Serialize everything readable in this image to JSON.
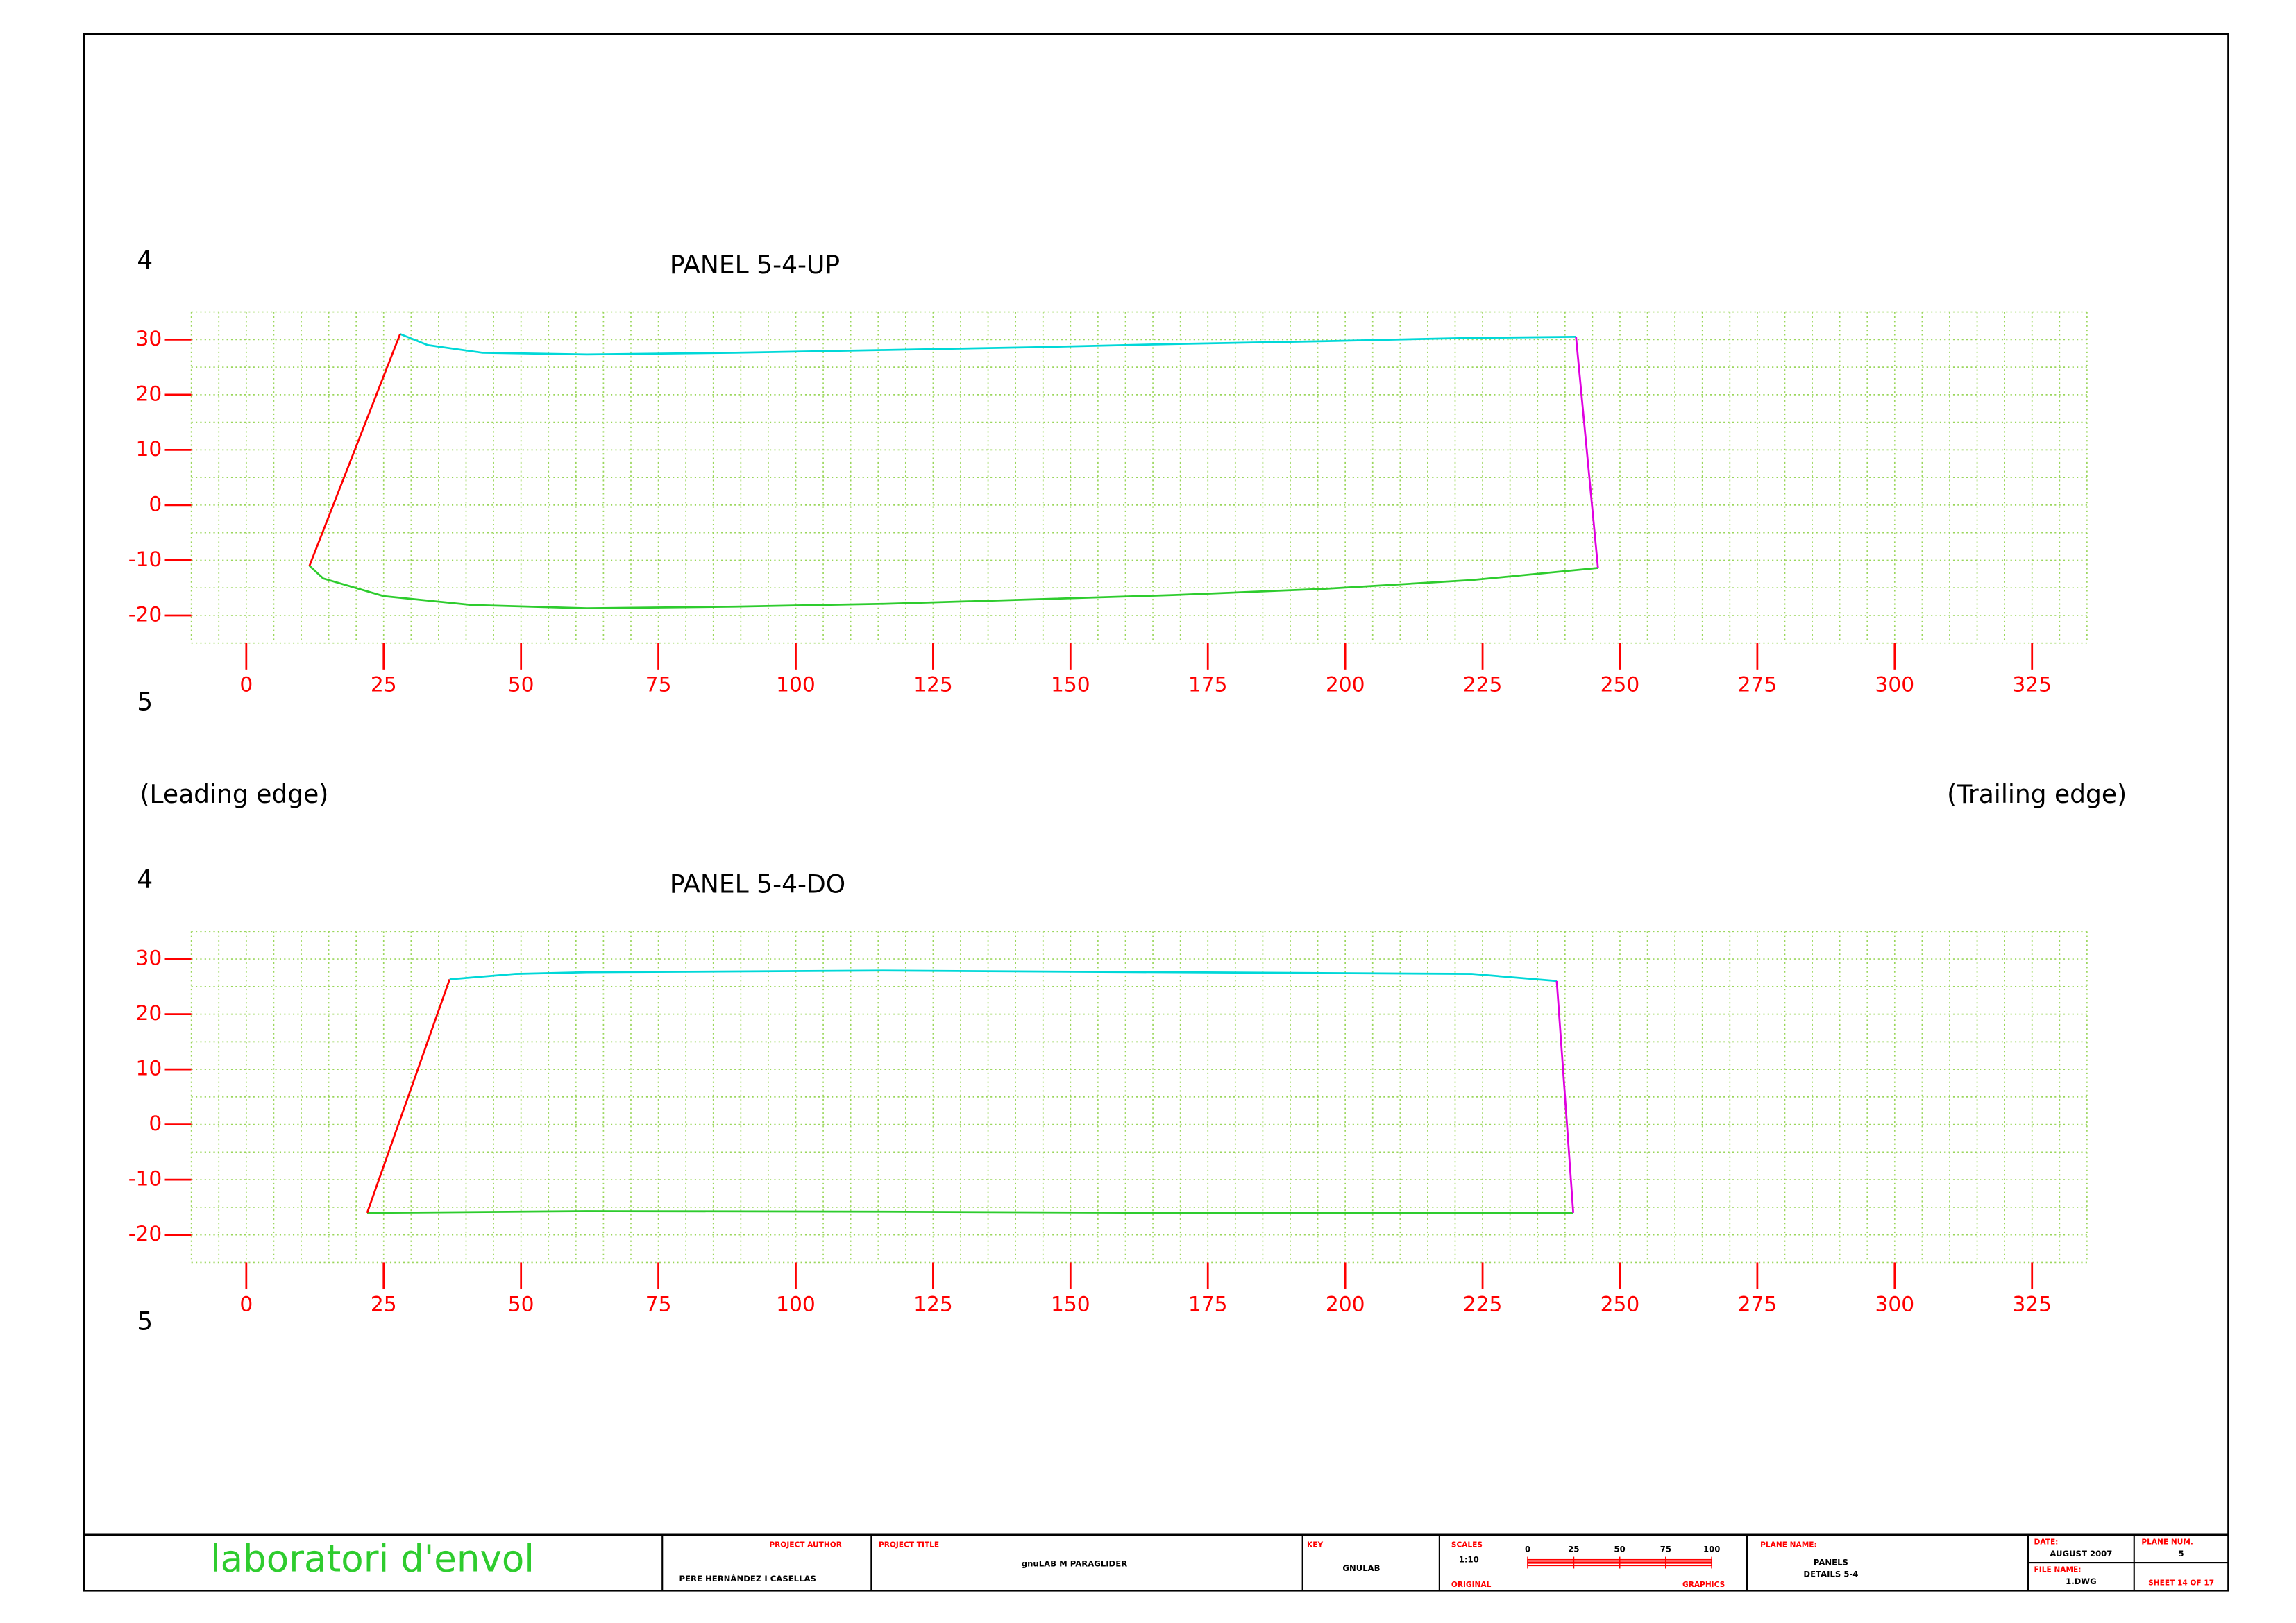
{
  "chart_data": [
    {
      "type": "line",
      "title": "PANEL 5-4-UP",
      "label_top": "4",
      "label_bottom": "5",
      "xlim": [
        -10,
        335
      ],
      "ylim": [
        -25,
        35
      ],
      "xticks": [
        0,
        25,
        50,
        75,
        100,
        125,
        150,
        175,
        200,
        225,
        250,
        275,
        300,
        325
      ],
      "yticks": [
        -20,
        -10,
        0,
        10,
        20,
        30
      ],
      "grid": true,
      "grid_step": 5,
      "series": [
        {
          "color": "#00d8d8",
          "x": [
            28,
            33,
            43,
            62,
            89,
            116,
            143,
            169,
            196,
            223,
            242
          ],
          "values": [
            31,
            29,
            27.6,
            27.3,
            27.6,
            28.1,
            28.6,
            29.2,
            29.7,
            30.3,
            30.5
          ]
        },
        {
          "color": "#2ecc2e",
          "x": [
            11.5,
            14,
            25,
            41,
            62,
            89,
            116,
            143,
            169,
            196,
            223,
            246
          ],
          "values": [
            -11,
            -13.3,
            -16.5,
            -18.1,
            -18.7,
            -18.4,
            -17.9,
            -17.1,
            -16.3,
            -15.2,
            -13.6,
            -11.4
          ]
        },
        {
          "color": "#ff0000",
          "x": [
            28,
            11.5
          ],
          "values": [
            31,
            -11
          ]
        },
        {
          "color": "#e000e0",
          "x": [
            242,
            246
          ],
          "values": [
            30.5,
            -11.4
          ]
        }
      ]
    },
    {
      "type": "line",
      "title": "PANEL 5-4-DO",
      "label_top": "4",
      "label_bottom": "5",
      "xlim": [
        -10,
        335
      ],
      "ylim": [
        -25,
        35
      ],
      "xticks": [
        0,
        25,
        50,
        75,
        100,
        125,
        150,
        175,
        200,
        225,
        250,
        275,
        300,
        325
      ],
      "yticks": [
        -20,
        -10,
        0,
        10,
        20,
        30
      ],
      "grid": true,
      "grid_step": 5,
      "series": [
        {
          "color": "#00d8d8",
          "x": [
            37,
            49,
            62,
            116,
            169,
            223,
            238.5
          ],
          "values": [
            26.3,
            27.3,
            27.6,
            27.9,
            27.6,
            27.3,
            26
          ]
        },
        {
          "color": "#2ecc2e",
          "x": [
            22,
            62,
            116,
            169,
            223,
            241.5
          ],
          "values": [
            -16,
            -15.7,
            -15.8,
            -16,
            -16,
            -16
          ]
        },
        {
          "color": "#ff0000",
          "x": [
            37,
            22
          ],
          "values": [
            26.3,
            -16
          ]
        },
        {
          "color": "#e000e0",
          "x": [
            238.5,
            241.5
          ],
          "values": [
            26,
            -16
          ]
        }
      ]
    }
  ],
  "annotations": {
    "leading": "(Leading edge)",
    "trailing": "(Trailing edge)"
  },
  "title_block": {
    "logo": "laboratori d'envol",
    "author_label": "PROJECT AUTHOR",
    "author": "PERE HERNÀNDEZ I CASELLAS",
    "project_label": "PROJECT TITLE",
    "project": "gnuLAB M PARAGLIDER",
    "key_label": "KEY",
    "key": "GNULAB",
    "scales_label": "SCALES",
    "scale": "1:10",
    "original_label": "ORIGINAL",
    "graphics_label": "GRAPHICS",
    "scale_bar": [
      "0",
      "25",
      "50",
      "75",
      "100"
    ],
    "plane_name_label": "PLANE NAME:",
    "plane_name": [
      "PANELS",
      "DETAILS 5-4"
    ],
    "date_label": "DATE:",
    "date": "AUGUST 2007",
    "file_label": "FILE NAME:",
    "file": "1.DWG",
    "plane_num_label": "PLANE NUM.",
    "plane_num": "5",
    "sheet": "SHEET 14 OF 17"
  }
}
